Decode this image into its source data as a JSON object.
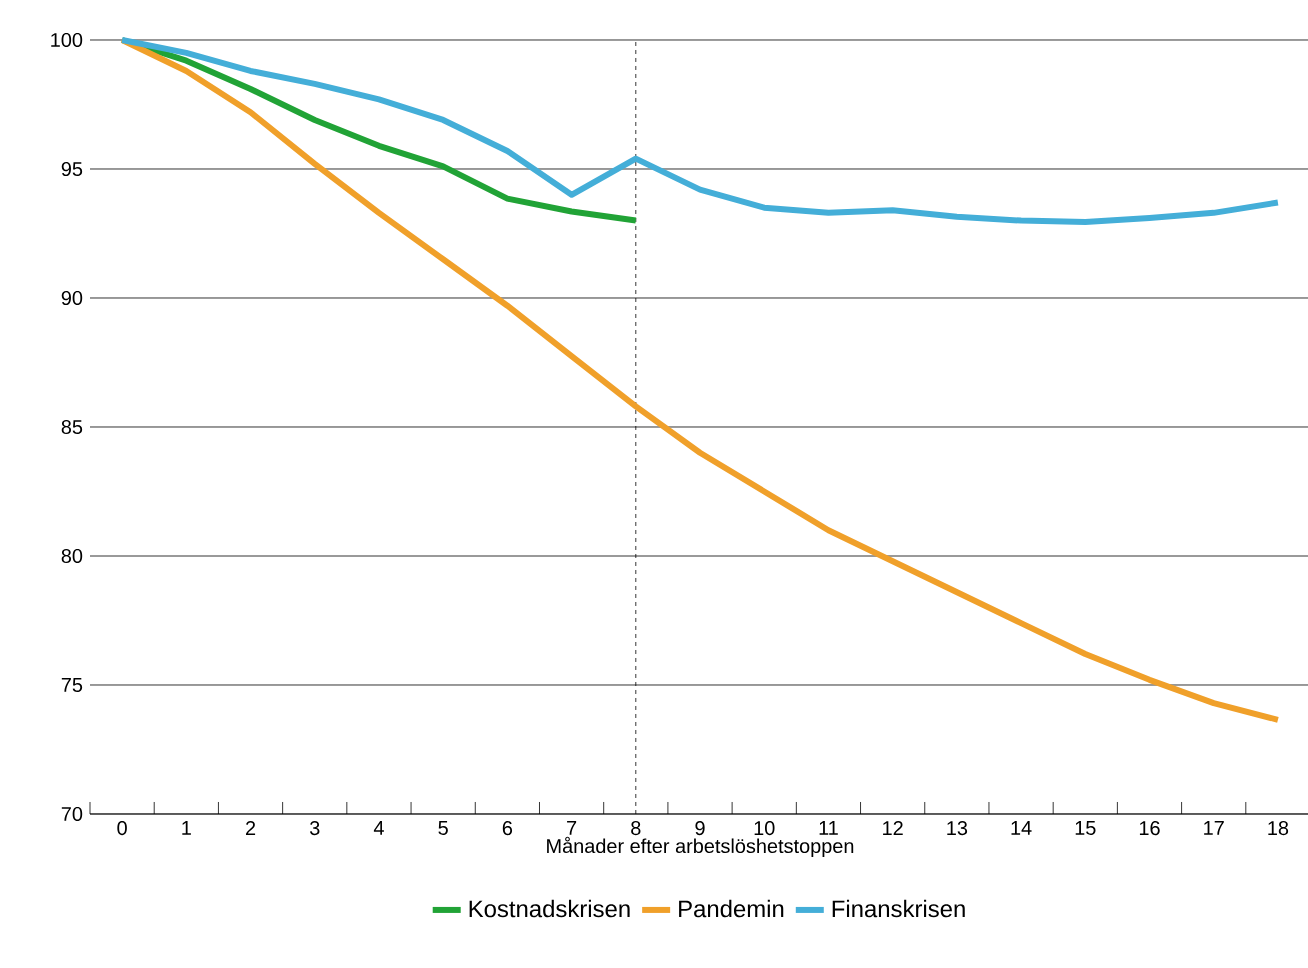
{
  "chart_data": {
    "type": "line",
    "xlabel": "Månader efter arbetslöshetstoppen",
    "categories": [
      "0",
      "1",
      "2",
      "3",
      "4",
      "5",
      "6",
      "7",
      "8",
      "9",
      "10",
      "11",
      "12",
      "13",
      "14",
      "15",
      "16",
      "17",
      "18"
    ],
    "series": [
      {
        "name": "Kostnadskrisen",
        "color": "#21a336",
        "values": [
          100,
          99.2,
          98.1,
          96.9,
          95.9,
          95.1,
          93.85,
          93.35,
          93.0,
          null,
          null,
          null,
          null,
          null,
          null,
          null,
          null,
          null,
          null
        ]
      },
      {
        "name": "Pandemin",
        "color": "#f0a02a",
        "values": [
          100,
          98.8,
          97.2,
          95.2,
          93.3,
          91.5,
          89.7,
          87.75,
          85.8,
          84.0,
          82.5,
          81.0,
          79.8,
          78.6,
          77.4,
          76.2,
          75.2,
          74.3,
          73.65
        ]
      },
      {
        "name": "Finanskrisen",
        "color": "#44aed8",
        "values": [
          100,
          99.5,
          98.8,
          98.3,
          97.7,
          96.9,
          95.7,
          94.0,
          95.4,
          94.2,
          93.5,
          93.3,
          93.4,
          93.15,
          93.0,
          92.95,
          93.1,
          93.3,
          93.7
        ]
      }
    ],
    "ylim": [
      70,
      100
    ],
    "yticks": [
      70,
      75,
      80,
      85,
      90,
      95,
      100
    ],
    "grid": "y",
    "legend": "bottom",
    "line_style": "solid",
    "marker": "none",
    "ref_lines": [
      {
        "axis": "x",
        "value": "8",
        "color": "#000000",
        "line_style": "dashed"
      }
    ]
  }
}
